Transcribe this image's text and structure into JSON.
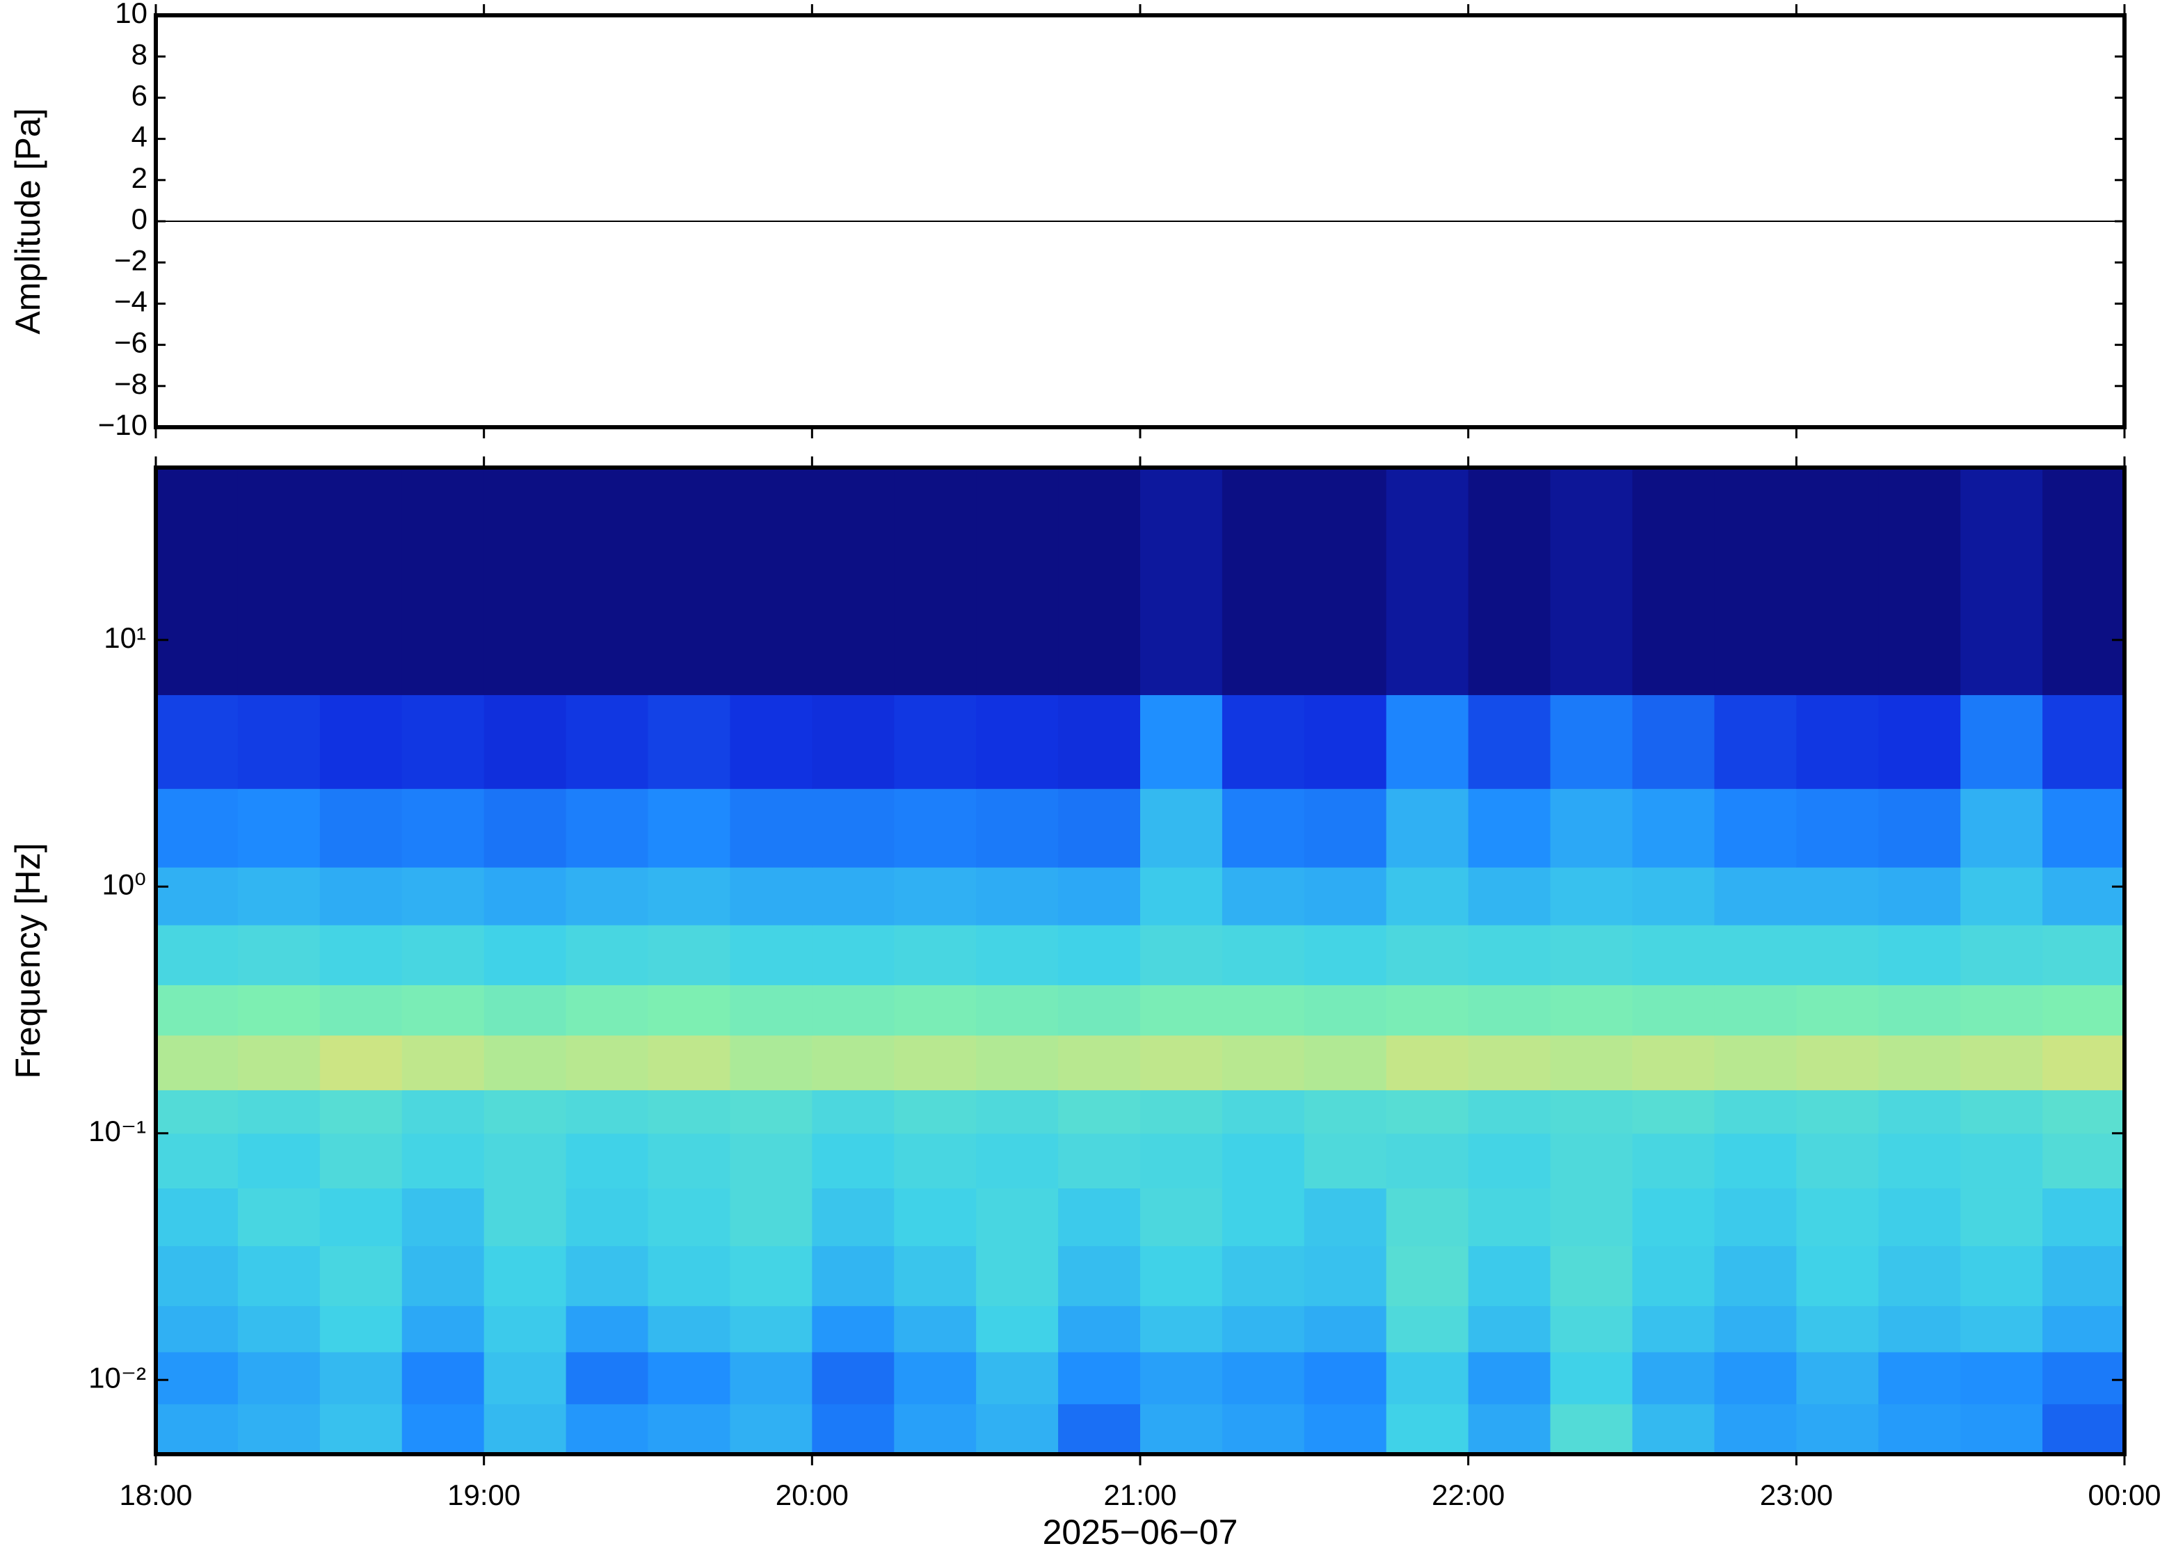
{
  "chart_data": [
    {
      "type": "line",
      "ylabel": "Amplitude [Pa]",
      "color": "#000000",
      "x": [
        18,
        18.5,
        19,
        19.5,
        20,
        20.5,
        21,
        21.5,
        22,
        22.5,
        23,
        23.5,
        24
      ],
      "values": [
        0,
        0,
        0,
        0,
        0,
        0,
        0,
        0,
        0,
        0,
        0,
        0,
        0
      ],
      "xlim": [
        18,
        24
      ],
      "ylim": [
        -10,
        10
      ],
      "yticks": [
        {
          "value": -10,
          "label": "−10"
        },
        {
          "value": -8,
          "label": "−8"
        },
        {
          "value": -6,
          "label": "−6"
        },
        {
          "value": -4,
          "label": "−4"
        },
        {
          "value": -2,
          "label": "−2"
        },
        0,
        2,
        4,
        6,
        8,
        10
      ]
    },
    {
      "type": "heatmap",
      "ylabel": "Frequency [Hz]",
      "xlabel": "2025−06−07",
      "log_y": true,
      "xlim": [
        18,
        24
      ],
      "ylim": [
        0.005,
        50
      ],
      "xticks": [
        {
          "value": 18,
          "label": "18:00"
        },
        {
          "value": 19,
          "label": "19:00"
        },
        {
          "value": 20,
          "label": "20:00"
        },
        {
          "value": 21,
          "label": "21:00"
        },
        {
          "value": 22,
          "label": "22:00"
        },
        {
          "value": 23,
          "label": "23:00"
        },
        {
          "value": 24,
          "label": "00:00"
        }
      ],
      "yticks": [
        {
          "value": 0.01,
          "label": "10⁻²"
        },
        {
          "value": 0.1,
          "label": "10⁻¹"
        },
        {
          "value": 1,
          "label": "10⁰"
        },
        {
          "value": 10,
          "label": "10¹"
        }
      ],
      "zlim": [
        0,
        100
      ],
      "colormap": [
        "#0b0b78",
        "#1030e0",
        "#1e8cff",
        "#40d2e8",
        "#80f0b0",
        "#f0e070",
        "#f5a040"
      ],
      "xbins": [
        18,
        18.25,
        18.5,
        18.75,
        19,
        19.25,
        19.5,
        19.75,
        20,
        20.25,
        20.5,
        20.75,
        21,
        21.25,
        21.5,
        21.75,
        22,
        22.25,
        22.5,
        22.75,
        23,
        23.25,
        23.5,
        23.75,
        24
      ],
      "ybins": [
        0.005,
        0.008,
        0.013,
        0.02,
        0.035,
        0.06,
        0.1,
        0.15,
        0.25,
        0.4,
        0.7,
        1.2,
        2.5,
        6,
        50
      ],
      "z": [
        [
          40,
          42,
          46,
          34,
          44,
          36,
          38,
          42,
          30,
          38,
          42,
          28,
          40,
          38,
          35,
          50,
          40,
          55,
          44,
          38,
          40,
          37,
          36,
          26
        ],
        [
          36,
          40,
          44,
          32,
          46,
          30,
          34,
          40,
          28,
          36,
          44,
          34,
          38,
          36,
          33,
          48,
          37,
          50,
          40,
          36,
          42,
          35,
          34,
          30
        ],
        [
          42,
          45,
          50,
          40,
          48,
          38,
          44,
          47,
          36,
          42,
          50,
          40,
          46,
          43,
          41,
          54,
          45,
          53,
          46,
          42,
          47,
          44,
          46,
          40
        ],
        [
          45,
          48,
          52,
          44,
          50,
          46,
          49,
          51,
          43,
          47,
          52,
          45,
          50,
          47,
          46,
          56,
          48,
          55,
          49,
          45,
          50,
          47,
          49,
          44
        ],
        [
          48,
          52,
          50,
          46,
          53,
          49,
          51,
          54,
          47,
          50,
          52,
          48,
          53,
          50,
          47,
          55,
          52,
          54,
          50,
          48,
          51,
          49,
          52,
          48
        ],
        [
          52,
          50,
          54,
          51,
          53,
          50,
          52,
          54,
          50,
          52,
          51,
          53,
          52,
          50,
          54,
          53,
          51,
          54,
          52,
          50,
          53,
          51,
          52,
          55
        ],
        [
          55,
          54,
          56,
          53,
          55,
          54,
          55,
          56,
          53,
          55,
          54,
          56,
          55,
          53,
          55,
          56,
          54,
          55,
          56,
          54,
          55,
          53,
          55,
          57
        ],
        [
          74,
          75,
          78,
          76,
          74,
          75,
          76,
          73,
          74,
          75,
          74,
          75,
          76,
          75,
          74,
          77,
          76,
          75,
          76,
          75,
          76,
          75,
          76,
          78
        ],
        [
          65,
          66,
          64,
          65,
          63,
          65,
          66,
          64,
          64,
          65,
          64,
          63,
          65,
          65,
          64,
          65,
          64,
          65,
          64,
          64,
          65,
          64,
          65,
          66
        ],
        [
          52,
          53,
          51,
          52,
          50,
          52,
          53,
          51,
          51,
          52,
          51,
          50,
          53,
          52,
          51,
          53,
          52,
          53,
          52,
          52,
          52,
          51,
          53,
          54
        ],
        [
          42,
          43,
          41,
          42,
          40,
          42,
          43,
          41,
          41,
          42,
          41,
          40,
          48,
          42,
          41,
          47,
          43,
          46,
          45,
          42,
          42,
          41,
          47,
          42
        ],
        [
          32,
          33,
          30,
          31,
          29,
          31,
          33,
          30,
          30,
          31,
          30,
          29,
          44,
          31,
          30,
          42,
          34,
          40,
          37,
          32,
          31,
          30,
          42,
          32
        ],
        [
          20,
          19,
          17,
          18,
          16,
          18,
          20,
          17,
          16,
          18,
          17,
          16,
          34,
          18,
          17,
          32,
          22,
          30,
          26,
          20,
          18,
          17,
          30,
          19
        ],
        [
          2,
          2,
          2,
          2,
          2,
          2,
          2,
          2,
          2,
          2,
          2,
          2,
          6,
          2,
          2,
          6,
          2,
          5,
          2,
          2,
          2,
          2,
          6,
          2
        ]
      ]
    }
  ]
}
